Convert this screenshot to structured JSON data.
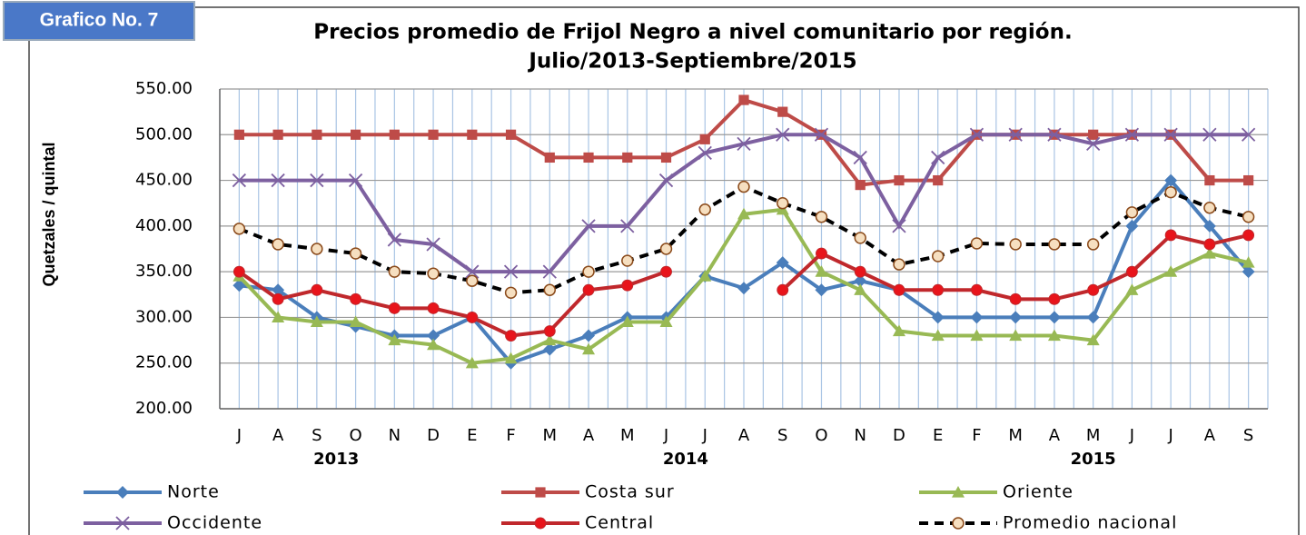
{
  "badge": "Grafico No. 7",
  "chart_data": {
    "type": "line",
    "title": "Precios promedio de Frijol Negro a nivel comunitario por región.",
    "subtitle": "Julio/2013-Septiembre/2015",
    "y_label": "Quetzales / quintal",
    "categories": [
      "J",
      "A",
      "S",
      "O",
      "N",
      "D",
      "E",
      "F",
      "M",
      "A",
      "M",
      "J",
      "J",
      "A",
      "S",
      "O",
      "N",
      "D",
      "E",
      "F",
      "M",
      "A",
      "M",
      "J",
      "J",
      "A",
      "S"
    ],
    "years": [
      "2013",
      "2014",
      "2015"
    ],
    "ylim": [
      200,
      550
    ],
    "yticks": [
      {
        "value": 200,
        "label": "200.00"
      },
      {
        "value": 250,
        "label": "250.00"
      },
      {
        "value": 300,
        "label": "300.00"
      },
      {
        "value": 350,
        "label": "350.00"
      },
      {
        "value": 400,
        "label": "400.00"
      },
      {
        "value": 450,
        "label": "450.00"
      },
      {
        "value": 500,
        "label": "500.00"
      },
      {
        "value": 550,
        "label": "550.00"
      }
    ],
    "grid": true,
    "series": [
      {
        "name": "Norte",
        "color": "#4a7ebb",
        "marker": "diamond",
        "values": [
          335,
          330,
          300,
          290,
          280,
          280,
          300,
          250,
          265,
          280,
          300,
          300,
          345,
          332,
          360,
          330,
          340,
          330,
          300,
          300,
          300,
          300,
          300,
          400,
          450,
          400,
          350
        ]
      },
      {
        "name": "Costa sur",
        "color": "#be4b48",
        "marker": "square",
        "values": [
          500,
          500,
          500,
          500,
          500,
          500,
          500,
          500,
          475,
          475,
          475,
          475,
          495,
          538,
          525,
          500,
          445,
          450,
          450,
          500,
          500,
          500,
          500,
          500,
          500,
          450,
          450
        ]
      },
      {
        "name": "Oriente",
        "color": "#98b954",
        "marker": "triangle",
        "values": [
          345,
          300,
          295,
          295,
          275,
          270,
          250,
          255,
          275,
          265,
          295,
          295,
          345,
          413,
          418,
          350,
          330,
          285,
          280,
          280,
          280,
          280,
          275,
          330,
          350,
          370,
          360
        ]
      },
      {
        "name": "Occidente",
        "color": "#7d60a0",
        "marker": "x",
        "values": [
          450,
          450,
          450,
          450,
          385,
          380,
          350,
          350,
          350,
          400,
          400,
          450,
          480,
          490,
          500,
          500,
          475,
          400,
          475,
          500,
          500,
          500,
          490,
          500,
          500,
          500,
          500
        ]
      },
      {
        "name": "Central",
        "color": "#c0282c",
        "marker": "circle",
        "values": [
          350,
          320,
          330,
          320,
          310,
          310,
          300,
          280,
          285,
          330,
          335,
          350,
          null,
          null,
          330,
          370,
          350,
          330,
          330,
          330,
          320,
          320,
          330,
          350,
          390,
          380,
          390
        ]
      },
      {
        "name": "Promedio nacional",
        "color": "#000000",
        "marker": "circle-open",
        "dash": true,
        "values": [
          397,
          380,
          375,
          370,
          350,
          348,
          340,
          327,
          330,
          350,
          362,
          375,
          418,
          443,
          425,
          410,
          387,
          358,
          367,
          381,
          380,
          380,
          380,
          415,
          437,
          420,
          410
        ]
      }
    ]
  }
}
